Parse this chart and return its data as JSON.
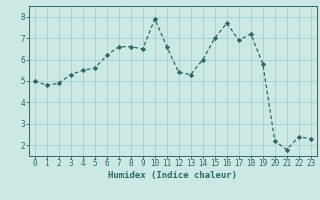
{
  "x": [
    0,
    1,
    2,
    3,
    4,
    5,
    6,
    7,
    8,
    9,
    10,
    11,
    12,
    13,
    14,
    15,
    16,
    17,
    18,
    19,
    20,
    21,
    22,
    23
  ],
  "y": [
    5.0,
    4.8,
    4.9,
    5.3,
    5.5,
    5.6,
    6.2,
    6.6,
    6.6,
    6.5,
    7.9,
    6.6,
    5.4,
    5.3,
    6.0,
    7.0,
    7.7,
    6.9,
    7.2,
    5.8,
    2.2,
    1.8,
    2.4,
    2.3
  ],
  "xlabel": "Humidex (Indice chaleur)",
  "ylim": [
    1.5,
    8.5
  ],
  "xlim": [
    -0.5,
    23.5
  ],
  "yticks": [
    2,
    3,
    4,
    5,
    6,
    7,
    8
  ],
  "xticks": [
    0,
    1,
    2,
    3,
    4,
    5,
    6,
    7,
    8,
    9,
    10,
    11,
    12,
    13,
    14,
    15,
    16,
    17,
    18,
    19,
    20,
    21,
    22,
    23
  ],
  "line_color": "#2a6b5e",
  "marker_color": "#2a6b5e",
  "bg_color": "#cce8e4",
  "grid_color": "#aad4cf",
  "axis_color": "#2a6b5e",
  "tick_color": "#2a6b5e",
  "label_color": "#2a6b5e",
  "label_fontsize": 6.5,
  "tick_fontsize": 5.5
}
